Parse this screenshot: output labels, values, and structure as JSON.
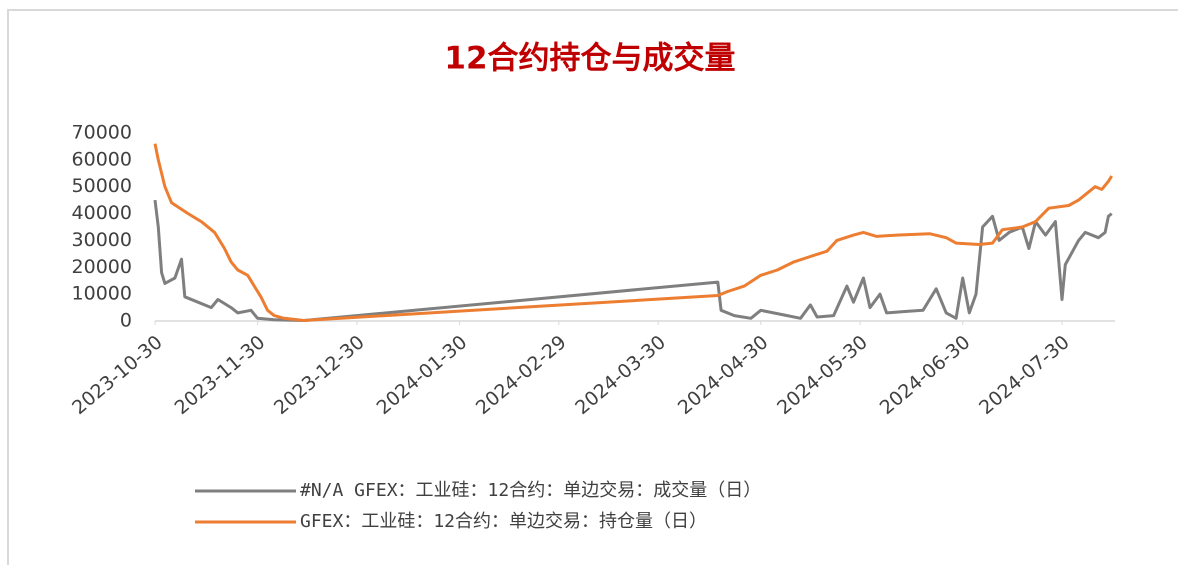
{
  "chart_data": {
    "type": "line",
    "title": "12合约持仓与成交量",
    "xlim": [
      "2023-10-30",
      "2024-08-15"
    ],
    "xticks": [
      "2023-10-30",
      "2023-11-30",
      "2023-12-30",
      "2024-01-30",
      "2024-02-29",
      "2024-03-30",
      "2024-04-30",
      "2024-05-30",
      "2024-06-30",
      "2024-07-30"
    ],
    "ylim": [
      0,
      70000
    ],
    "yticks": [
      0,
      10000,
      20000,
      30000,
      40000,
      50000,
      60000,
      70000
    ],
    "grid": false,
    "legend": "bottom",
    "series": [
      {
        "name": "#N/A GFEX：工业硅：12合约：单边交易：成交量（日）",
        "color": "#7f7f7f",
        "x": [
          "2023-10-30",
          "2023-10-31",
          "2023-11-01",
          "2023-11-02",
          "2023-11-05",
          "2023-11-07",
          "2023-11-08",
          "2023-11-12",
          "2023-11-16",
          "2023-11-18",
          "2023-11-22",
          "2023-11-24",
          "2023-11-28",
          "2023-11-30",
          "2023-12-05",
          "2023-12-14",
          "2024-04-17",
          "2024-04-18",
          "2024-04-22",
          "2024-04-27",
          "2024-04-30",
          "2024-05-08",
          "2024-05-12",
          "2024-05-15",
          "2024-05-17",
          "2024-05-22",
          "2024-05-26",
          "2024-05-28",
          "2024-05-31",
          "2024-06-02",
          "2024-06-05",
          "2024-06-07",
          "2024-06-12",
          "2024-06-18",
          "2024-06-22",
          "2024-06-25",
          "2024-06-28",
          "2024-06-30",
          "2024-07-02",
          "2024-07-04",
          "2024-07-06",
          "2024-07-09",
          "2024-07-11",
          "2024-07-14",
          "2024-07-18",
          "2024-07-20",
          "2024-07-22",
          "2024-07-25",
          "2024-07-28",
          "2024-07-30",
          "2024-07-31",
          "2024-08-04",
          "2024-08-06",
          "2024-08-10",
          "2024-08-12",
          "2024-08-13",
          "2024-08-14"
        ],
        "values": [
          45000,
          35000,
          18000,
          14000,
          16000,
          23000,
          9000,
          7000,
          5000,
          8000,
          5000,
          3000,
          4000,
          1000,
          500,
          200,
          14500,
          4000,
          2000,
          1000,
          4000,
          2000,
          1000,
          6000,
          1500,
          2000,
          13000,
          7000,
          16000,
          5000,
          10000,
          3000,
          3500,
          4000,
          12000,
          3000,
          1000,
          16000,
          3000,
          10000,
          35000,
          39000,
          30000,
          33000,
          35000,
          27000,
          37000,
          32000,
          37000,
          8000,
          21000,
          30000,
          33000,
          31000,
          33000,
          39000,
          40000
        ]
      },
      {
        "name": "GFEX：工业硅：12合约：单边交易：持仓量（日）",
        "color": "#ed7d31",
        "x": [
          "2023-10-30",
          "2023-10-31",
          "2023-11-02",
          "2023-11-04",
          "2023-11-09",
          "2023-11-13",
          "2023-11-17",
          "2023-11-20",
          "2023-11-22",
          "2023-11-24",
          "2023-11-27",
          "2023-11-29",
          "2023-12-01",
          "2023-12-03",
          "2023-12-05",
          "2023-12-08",
          "2023-12-14",
          "2024-04-17",
          "2024-04-20",
          "2024-04-25",
          "2024-04-30",
          "2024-05-05",
          "2024-05-10",
          "2024-05-15",
          "2024-05-20",
          "2024-05-23",
          "2024-05-28",
          "2024-05-31",
          "2024-06-04",
          "2024-06-10",
          "2024-06-20",
          "2024-06-25",
          "2024-06-28",
          "2024-07-05",
          "2024-07-09",
          "2024-07-12",
          "2024-07-18",
          "2024-07-22",
          "2024-07-26",
          "2024-08-01",
          "2024-08-04",
          "2024-08-07",
          "2024-08-09",
          "2024-08-11",
          "2024-08-13",
          "2024-08-14"
        ],
        "values": [
          66000,
          60000,
          50000,
          44000,
          40000,
          37000,
          33000,
          27000,
          22000,
          19000,
          17000,
          13000,
          9000,
          4000,
          2000,
          1000,
          200,
          9500,
          11000,
          13000,
          17000,
          19000,
          22000,
          24000,
          26000,
          30000,
          32000,
          33000,
          31500,
          32000,
          32500,
          31000,
          29000,
          28500,
          29000,
          34000,
          35000,
          37000,
          42000,
          43000,
          45000,
          48000,
          50000,
          49000,
          52000,
          54000
        ]
      }
    ]
  }
}
